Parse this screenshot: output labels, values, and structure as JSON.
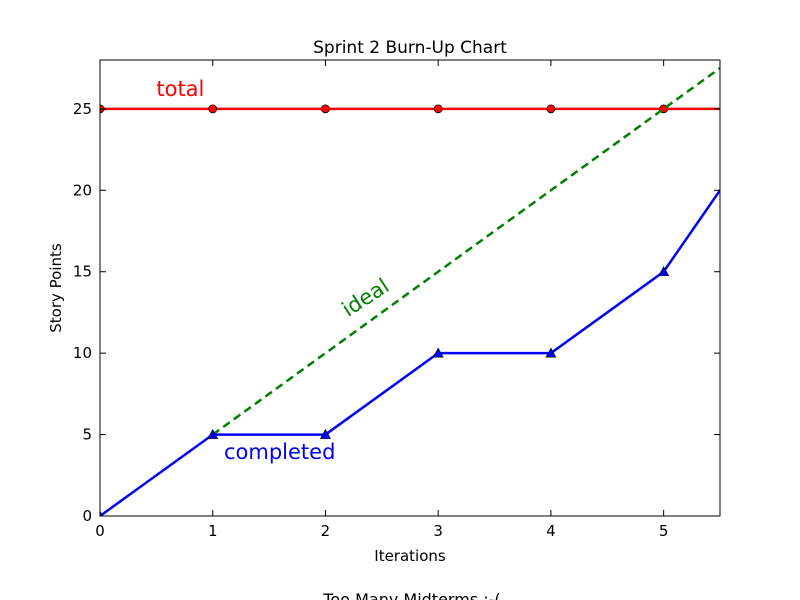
{
  "chart_data": {
    "type": "line",
    "title": "Sprint 2 Burn-Up Chart",
    "xlabel": "Iterations",
    "ylabel": "Story Points",
    "xlim": [
      0,
      5.5
    ],
    "ylim": [
      0,
      28
    ],
    "x_ticks": [
      0,
      1,
      2,
      3,
      4,
      5
    ],
    "y_ticks": [
      0,
      5,
      10,
      15,
      20,
      25
    ],
    "grid": false,
    "series": [
      {
        "name": "total",
        "color": "#ff0000",
        "style": "solid",
        "marker": "circle",
        "x": [
          0,
          1,
          2,
          3,
          4,
          5,
          5.5
        ],
        "y": [
          25,
          25,
          25,
          25,
          25,
          25,
          25
        ],
        "marker_count": 6
      },
      {
        "name": "ideal",
        "color": "#008000",
        "style": "dashed",
        "marker": "none",
        "x": [
          1,
          5.5
        ],
        "y": [
          5,
          27.5
        ]
      },
      {
        "name": "completed",
        "color": "#0000ff",
        "style": "solid",
        "marker": "triangle",
        "x": [
          0,
          1,
          2,
          3,
          4,
          5,
          5.5
        ],
        "y": [
          0,
          5,
          5,
          10,
          10,
          15,
          20
        ],
        "marker_count": 6
      }
    ],
    "annotations": [
      {
        "text": "total",
        "x": 0.5,
        "y": 25.8,
        "color": "#ff0000",
        "rotation": 0
      },
      {
        "text": "ideal",
        "x": 2.2,
        "y": 12.2,
        "color": "#008000",
        "rotation": -33
      },
      {
        "text": "completed",
        "x": 1.1,
        "y": 3.5,
        "color": "#0000ff",
        "rotation": 0
      }
    ],
    "caption": "Too Many Midterms :-("
  }
}
